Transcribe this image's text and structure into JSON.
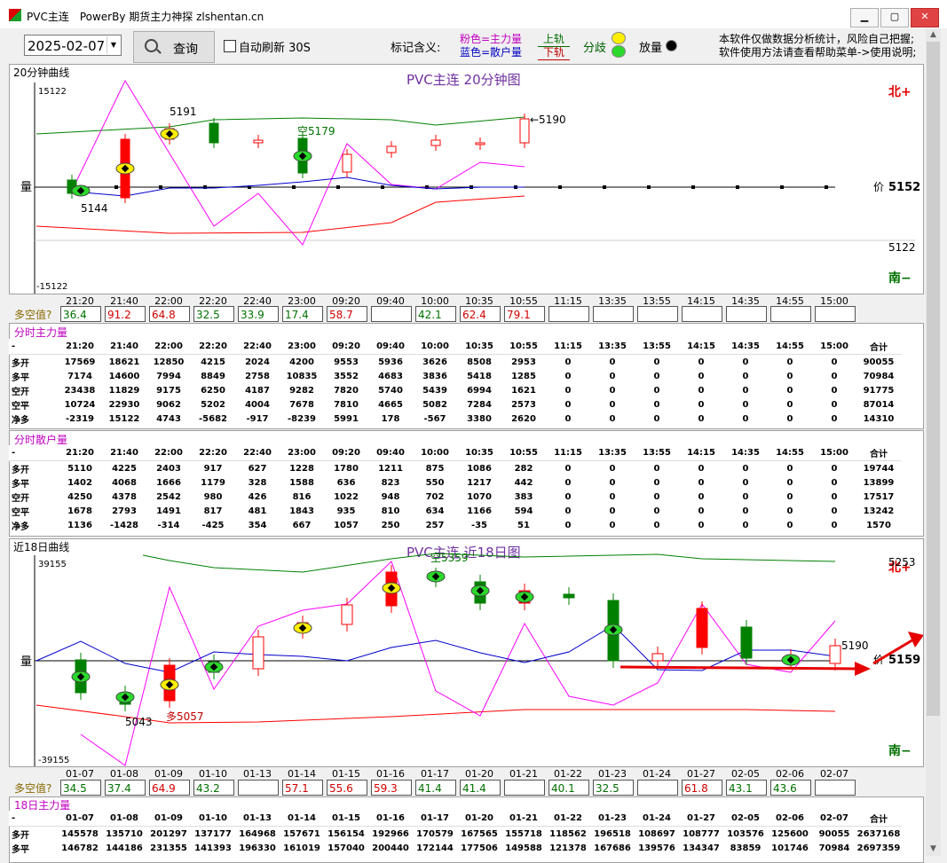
{
  "window": {
    "title": "PVC主连　PowerBy 期货主力神探 zlshentan.cn",
    "min_label": "▁",
    "max_label": "▢",
    "close_label": "✕"
  },
  "toolbar": {
    "date": "2025-02-07",
    "query_label": "查询",
    "auto_refresh_label": "自动刷新 30S",
    "legend_label": "标记含义:",
    "legend_pink": "粉色=主力量",
    "legend_blue": "蓝色=散户量",
    "legend_up_rail": "上轨",
    "legend_down_rail": "下轨",
    "legend_split": "分歧",
    "legend_volume": "放量",
    "disclaimer_1": "本软件仅做数据分析统计，风险自己把握;",
    "disclaimer_2": "软件使用方法请查看帮助菜单->使用说明;"
  },
  "chart20": {
    "panel_title": "20分钟曲线",
    "title": "PVC主连 20分钟图",
    "y_top": "15122",
    "y_bottom": "-15122",
    "y_label": "量",
    "north": "北+",
    "south": "南−",
    "price_label": "价",
    "price_value": "5152",
    "level_label": "5122",
    "ann_high": "5191",
    "ann_low": "5144",
    "ann_short": "空5179",
    "ann_last": "←5190",
    "times": [
      "21:20",
      "21:40",
      "22:00",
      "22:20",
      "22:40",
      "23:00",
      "09:20",
      "09:40",
      "10:00",
      "10:35",
      "10:55",
      "11:15",
      "13:35",
      "13:55",
      "14:15",
      "14:35",
      "14:55",
      "15:00"
    ],
    "ls_label": "多空值?",
    "ls_values": [
      "36.4",
      "91.2",
      "64.8",
      "32.5",
      "33.9",
      "17.4",
      "58.7",
      "",
      "42.1",
      "62.4",
      "79.1",
      "",
      "",
      "",
      "",
      "",
      "",
      ""
    ]
  },
  "main20": {
    "title": "分时主力量",
    "headers": [
      "-",
      "21:20",
      "21:40",
      "22:00",
      "22:20",
      "22:40",
      "23:00",
      "09:20",
      "09:40",
      "10:00",
      "10:35",
      "10:55",
      "11:15",
      "13:35",
      "13:55",
      "14:15",
      "14:35",
      "14:55",
      "15:00",
      "合计"
    ],
    "rows": [
      [
        "多开",
        "17569",
        "18621",
        "12850",
        "4215",
        "2024",
        "4200",
        "9553",
        "5936",
        "3626",
        "8508",
        "2953",
        "0",
        "0",
        "0",
        "0",
        "0",
        "0",
        "0",
        "90055"
      ],
      [
        "多平",
        "7174",
        "14600",
        "7994",
        "8849",
        "2758",
        "10835",
        "3552",
        "4683",
        "3836",
        "5418",
        "1285",
        "0",
        "0",
        "0",
        "0",
        "0",
        "0",
        "0",
        "70984"
      ],
      [
        "空开",
        "23438",
        "11829",
        "9175",
        "6250",
        "4187",
        "9282",
        "7820",
        "5740",
        "5439",
        "6994",
        "1621",
        "0",
        "0",
        "0",
        "0",
        "0",
        "0",
        "0",
        "91775"
      ],
      [
        "空平",
        "10724",
        "22930",
        "9062",
        "5202",
        "4004",
        "7678",
        "7810",
        "4665",
        "5082",
        "7284",
        "2573",
        "0",
        "0",
        "0",
        "0",
        "0",
        "0",
        "0",
        "87014"
      ],
      [
        "净多",
        "-2319",
        "15122",
        "4743",
        "-5682",
        "-917",
        "-8239",
        "5991",
        "178",
        "-567",
        "3380",
        "2620",
        "0",
        "0",
        "0",
        "0",
        "0",
        "0",
        "0",
        "14310"
      ]
    ]
  },
  "retail20": {
    "title": "分时散户量",
    "headers": [
      "-",
      "21:20",
      "21:40",
      "22:00",
      "22:20",
      "22:40",
      "23:00",
      "09:20",
      "09:40",
      "10:00",
      "10:35",
      "10:55",
      "11:15",
      "13:35",
      "13:55",
      "14:15",
      "14:35",
      "14:55",
      "15:00",
      "合计"
    ],
    "rows": [
      [
        "多开",
        "5110",
        "4225",
        "2403",
        "917",
        "627",
        "1228",
        "1780",
        "1211",
        "875",
        "1086",
        "282",
        "0",
        "0",
        "0",
        "0",
        "0",
        "0",
        "0",
        "19744"
      ],
      [
        "多平",
        "1402",
        "4068",
        "1666",
        "1179",
        "328",
        "1588",
        "636",
        "823",
        "550",
        "1217",
        "442",
        "0",
        "0",
        "0",
        "0",
        "0",
        "0",
        "0",
        "13899"
      ],
      [
        "空开",
        "4250",
        "4378",
        "2542",
        "980",
        "426",
        "816",
        "1022",
        "948",
        "702",
        "1070",
        "383",
        "0",
        "0",
        "0",
        "0",
        "0",
        "0",
        "0",
        "17517"
      ],
      [
        "空平",
        "1678",
        "2793",
        "1491",
        "817",
        "481",
        "1843",
        "935",
        "810",
        "634",
        "1166",
        "594",
        "0",
        "0",
        "0",
        "0",
        "0",
        "0",
        "0",
        "13242"
      ],
      [
        "净多",
        "1136",
        "-1428",
        "-314",
        "-425",
        "354",
        "667",
        "1057",
        "250",
        "257",
        "-35",
        "51",
        "0",
        "0",
        "0",
        "0",
        "0",
        "0",
        "0",
        "1570"
      ]
    ]
  },
  "chart18": {
    "panel_title": "近18日曲线",
    "title": "PVC主连 近18日图",
    "y_top": "39155",
    "y_bottom": "-39155",
    "y_label": "量",
    "north": "北+",
    "south": "南−",
    "price_label": "价",
    "price_value": "5159",
    "level_label": "5253",
    "ann_low": "5043",
    "ann_long": "多5057",
    "ann_short": "空5359",
    "ann_last": "5190",
    "dates": [
      "01-07",
      "01-08",
      "01-09",
      "01-10",
      "01-13",
      "01-14",
      "01-15",
      "01-16",
      "01-17",
      "01-20",
      "01-21",
      "01-22",
      "01-23",
      "01-24",
      "01-27",
      "02-05",
      "02-06",
      "02-07"
    ],
    "ls_label": "多空值?",
    "ls_values": [
      "34.5",
      "37.4",
      "64.9",
      "43.2",
      "",
      "57.1",
      "55.6",
      "59.3",
      "41.4",
      "41.4",
      "",
      "40.1",
      "32.5",
      "",
      "61.8",
      "43.1",
      "43.6",
      ""
    ]
  },
  "main18": {
    "title": "18日主力量",
    "headers": [
      "-",
      "01-07",
      "01-08",
      "01-09",
      "01-10",
      "01-13",
      "01-14",
      "01-15",
      "01-16",
      "01-17",
      "01-20",
      "01-21",
      "01-22",
      "01-23",
      "01-24",
      "01-27",
      "02-05",
      "02-06",
      "02-07",
      "合计"
    ],
    "rows": [
      [
        "多开",
        "145578",
        "135710",
        "201297",
        "137177",
        "164968",
        "157671",
        "156154",
        "192966",
        "170579",
        "167565",
        "155718",
        "118562",
        "196518",
        "108697",
        "108777",
        "103576",
        "125600",
        "90055",
        "2637168"
      ],
      [
        "多平",
        "146782",
        "144186",
        "231355",
        "141393",
        "196330",
        "161019",
        "157040",
        "200440",
        "172144",
        "177506",
        "149588",
        "121378",
        "167686",
        "139576",
        "134347",
        "83859",
        "101746",
        "70984",
        "2697359"
      ]
    ]
  },
  "colors": {
    "up": "#ff0000",
    "down": "#008000",
    "pink": "#ff00ff",
    "blue": "#0000cc",
    "upper_rail": "#008000",
    "lower_rail": "#ff0000",
    "accent_red": "#e60000"
  }
}
